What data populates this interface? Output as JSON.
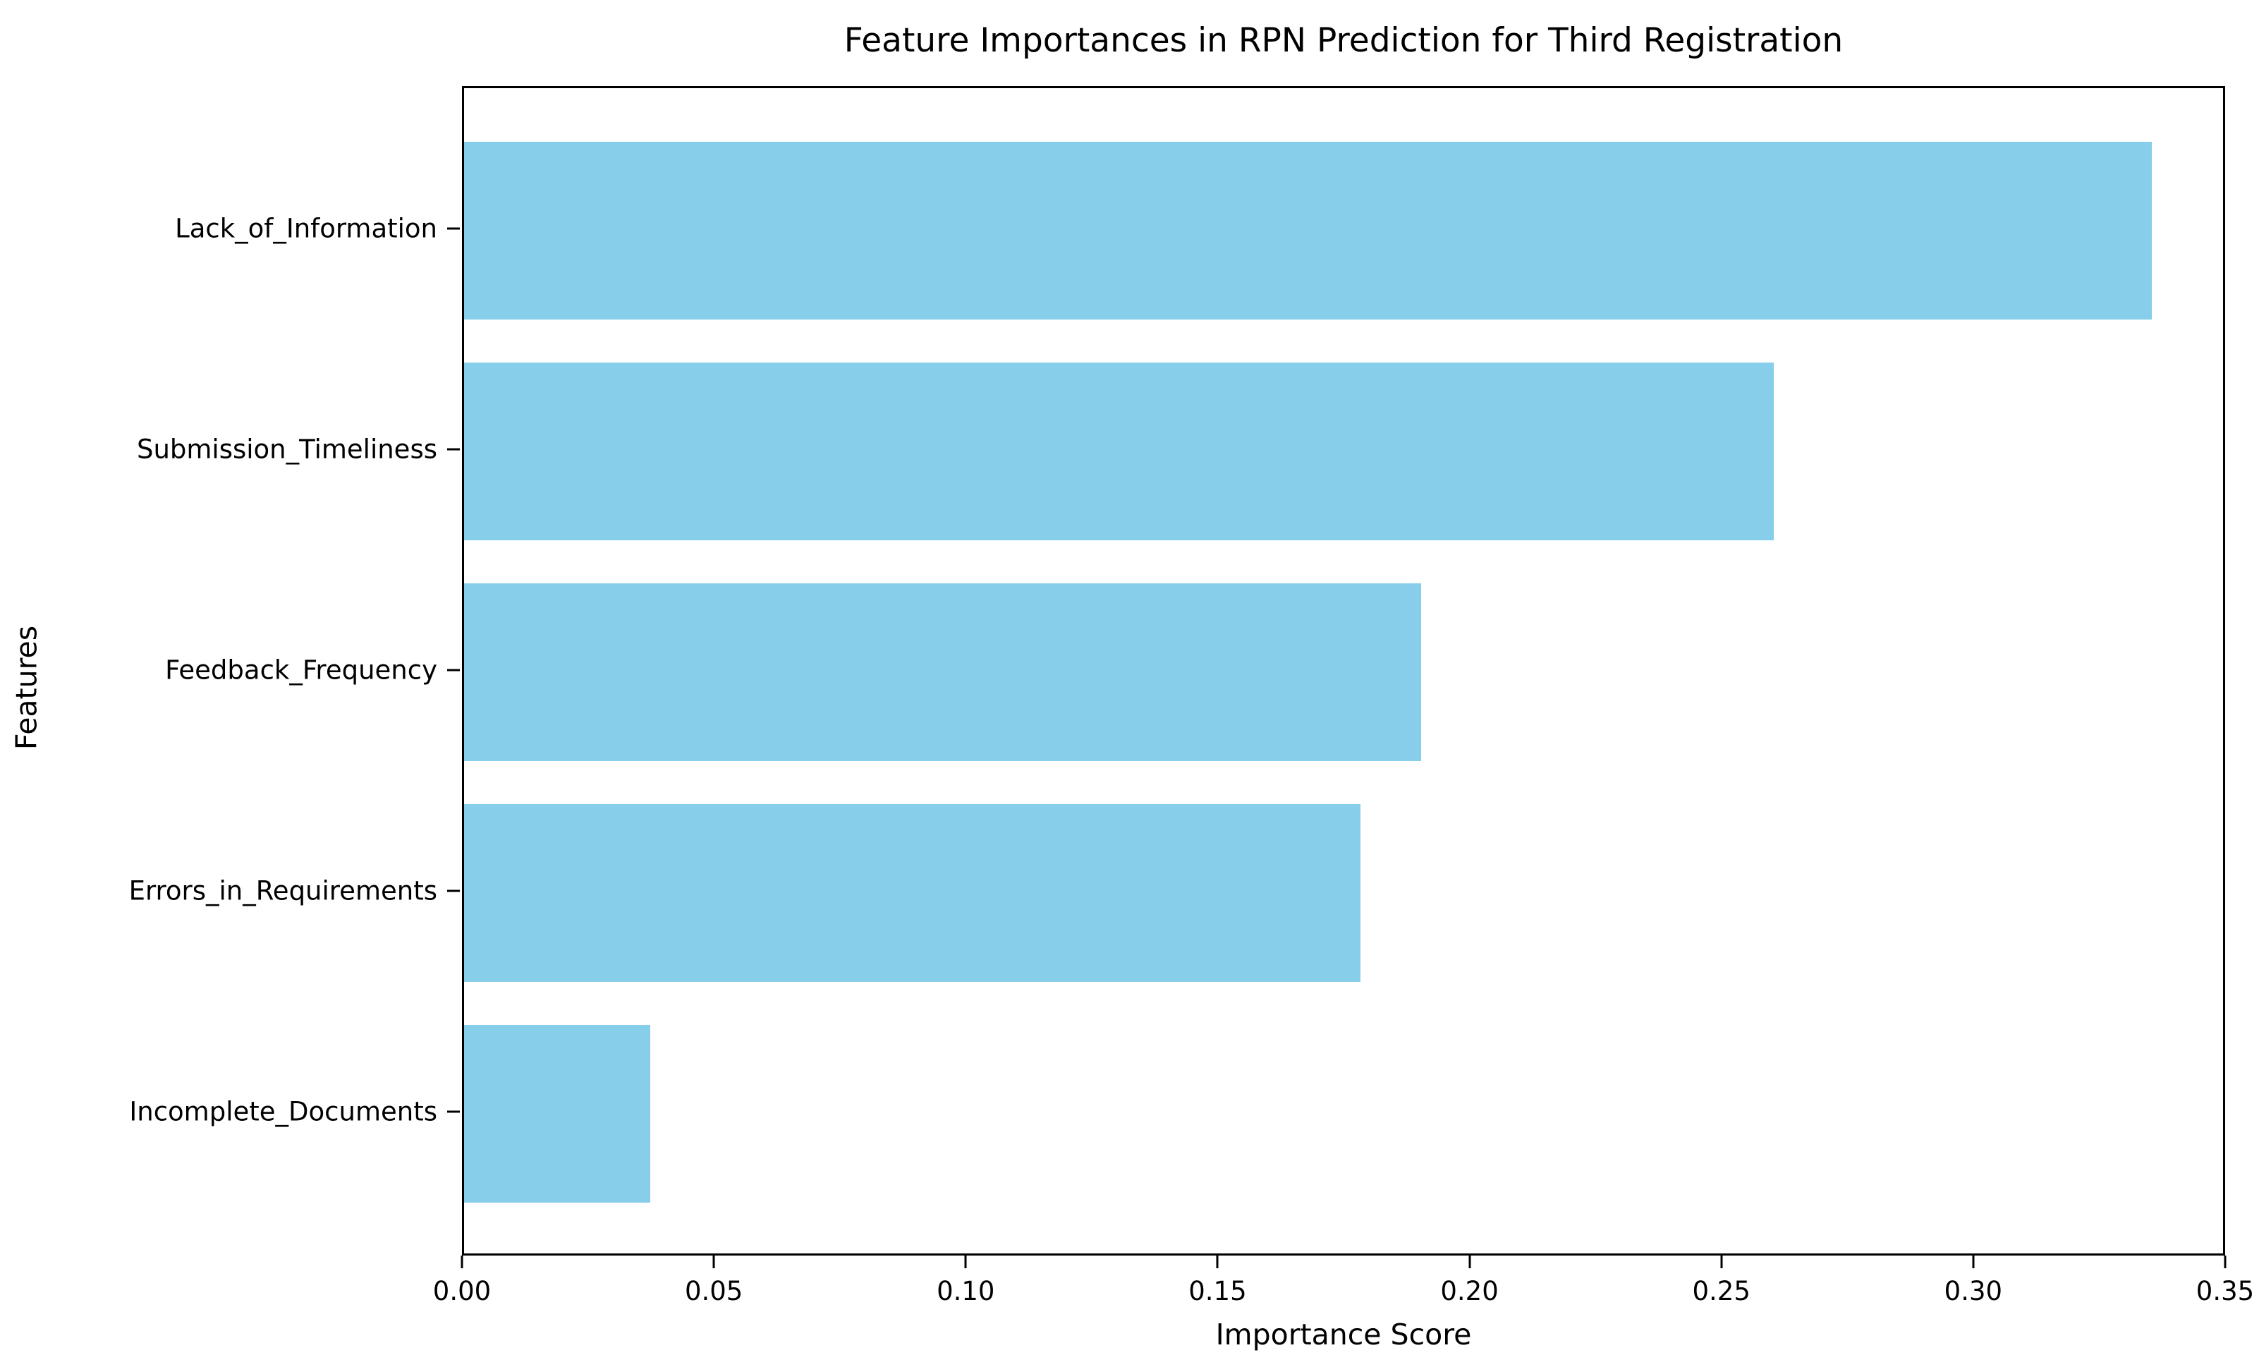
{
  "chart_data": {
    "type": "bar",
    "orientation": "horizontal",
    "title": "Feature Importances in RPN Prediction for Third Registration",
    "xlabel": "Importance Score",
    "ylabel": "Features",
    "categories": [
      "Lack_of_Information",
      "Submission_Timeliness",
      "Feedback_Frequency",
      "Errors_in_Requirements",
      "Incomplete_Documents"
    ],
    "values": [
      0.335,
      0.26,
      0.19,
      0.178,
      0.037
    ],
    "xlim": [
      0,
      0.35
    ],
    "xticks": [
      "0.00",
      "0.05",
      "0.10",
      "0.15",
      "0.20",
      "0.25",
      "0.30",
      "0.35"
    ],
    "bar_color": "#87CEEB",
    "axis_color": "#000000",
    "text_color": "#000000",
    "background_color": "#FFFFFF",
    "grid": false,
    "legend": null
  }
}
